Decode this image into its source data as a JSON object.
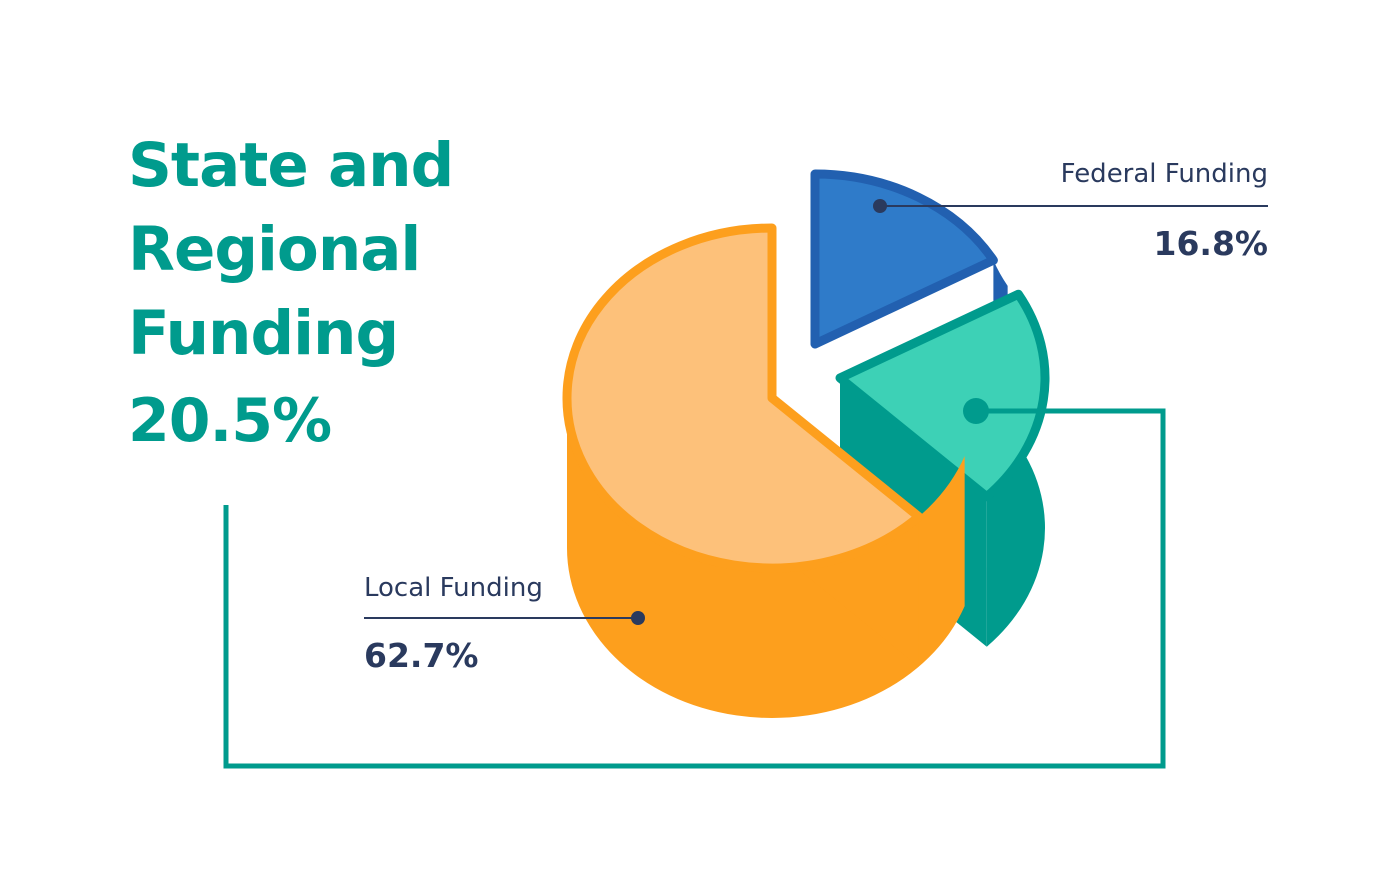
{
  "chart_data": {
    "type": "pie",
    "title": "",
    "slices": [
      {
        "name": "Federal Funding",
        "value": 16.8,
        "label": "16.8%",
        "color": "#2f7bc9"
      },
      {
        "name": "State and Regional Funding",
        "value": 20.5,
        "label": "20.5%",
        "color": "#3dd1b6"
      },
      {
        "name": "Local Funding",
        "value": 62.7,
        "label": "62.7%",
        "color": "#fdc17a"
      }
    ],
    "style": "3d-exploded"
  },
  "colors": {
    "federal_top": "#2f7bc9",
    "federal_side": "#2260b0",
    "federal_border": "#2260b0",
    "state_top": "#3dd1b6",
    "state_side": "#009b8d",
    "local_top": "#fdc17a",
    "local_side": "#fd9f1d",
    "accent_teal": "#009b8d",
    "text_dark": "#2a3a5e"
  }
}
